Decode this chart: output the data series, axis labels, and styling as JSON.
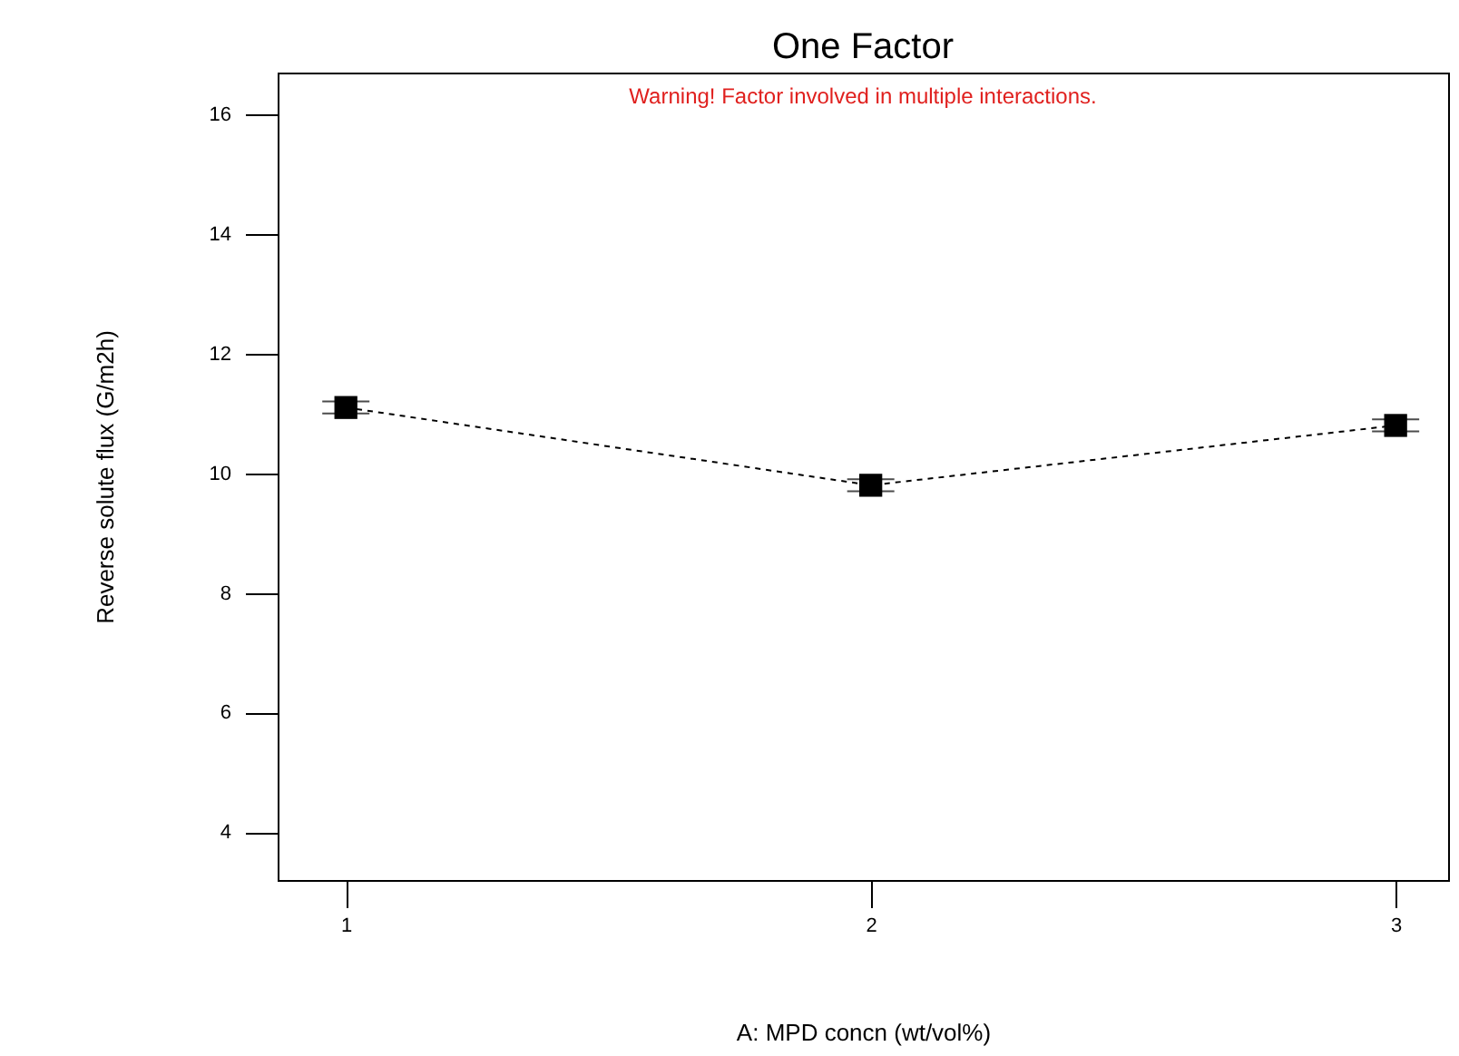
{
  "chart_data": {
    "type": "line",
    "title": "One Factor",
    "xlabel": "A: MPD concn (wt/vol%)",
    "ylabel": "Reverse solute flux (G/m2h)",
    "annotations": [
      "Warning! Factor involved in multiple interactions."
    ],
    "x": [
      1,
      2,
      3
    ],
    "series": [
      {
        "color": "#000000",
        "values": [
          11.1,
          9.8,
          10.8
        ],
        "errors": [
          0.1,
          0.1,
          0.1
        ]
      }
    ],
    "xlim": [
      0.87,
      3.1
    ],
    "xticks": [
      1,
      2,
      3
    ],
    "ylim": [
      3.2,
      16.7
    ],
    "yticks": [
      4,
      6,
      8,
      10,
      12,
      14,
      16
    ],
    "marker": "square",
    "line_style": "dashed",
    "grid": false
  }
}
